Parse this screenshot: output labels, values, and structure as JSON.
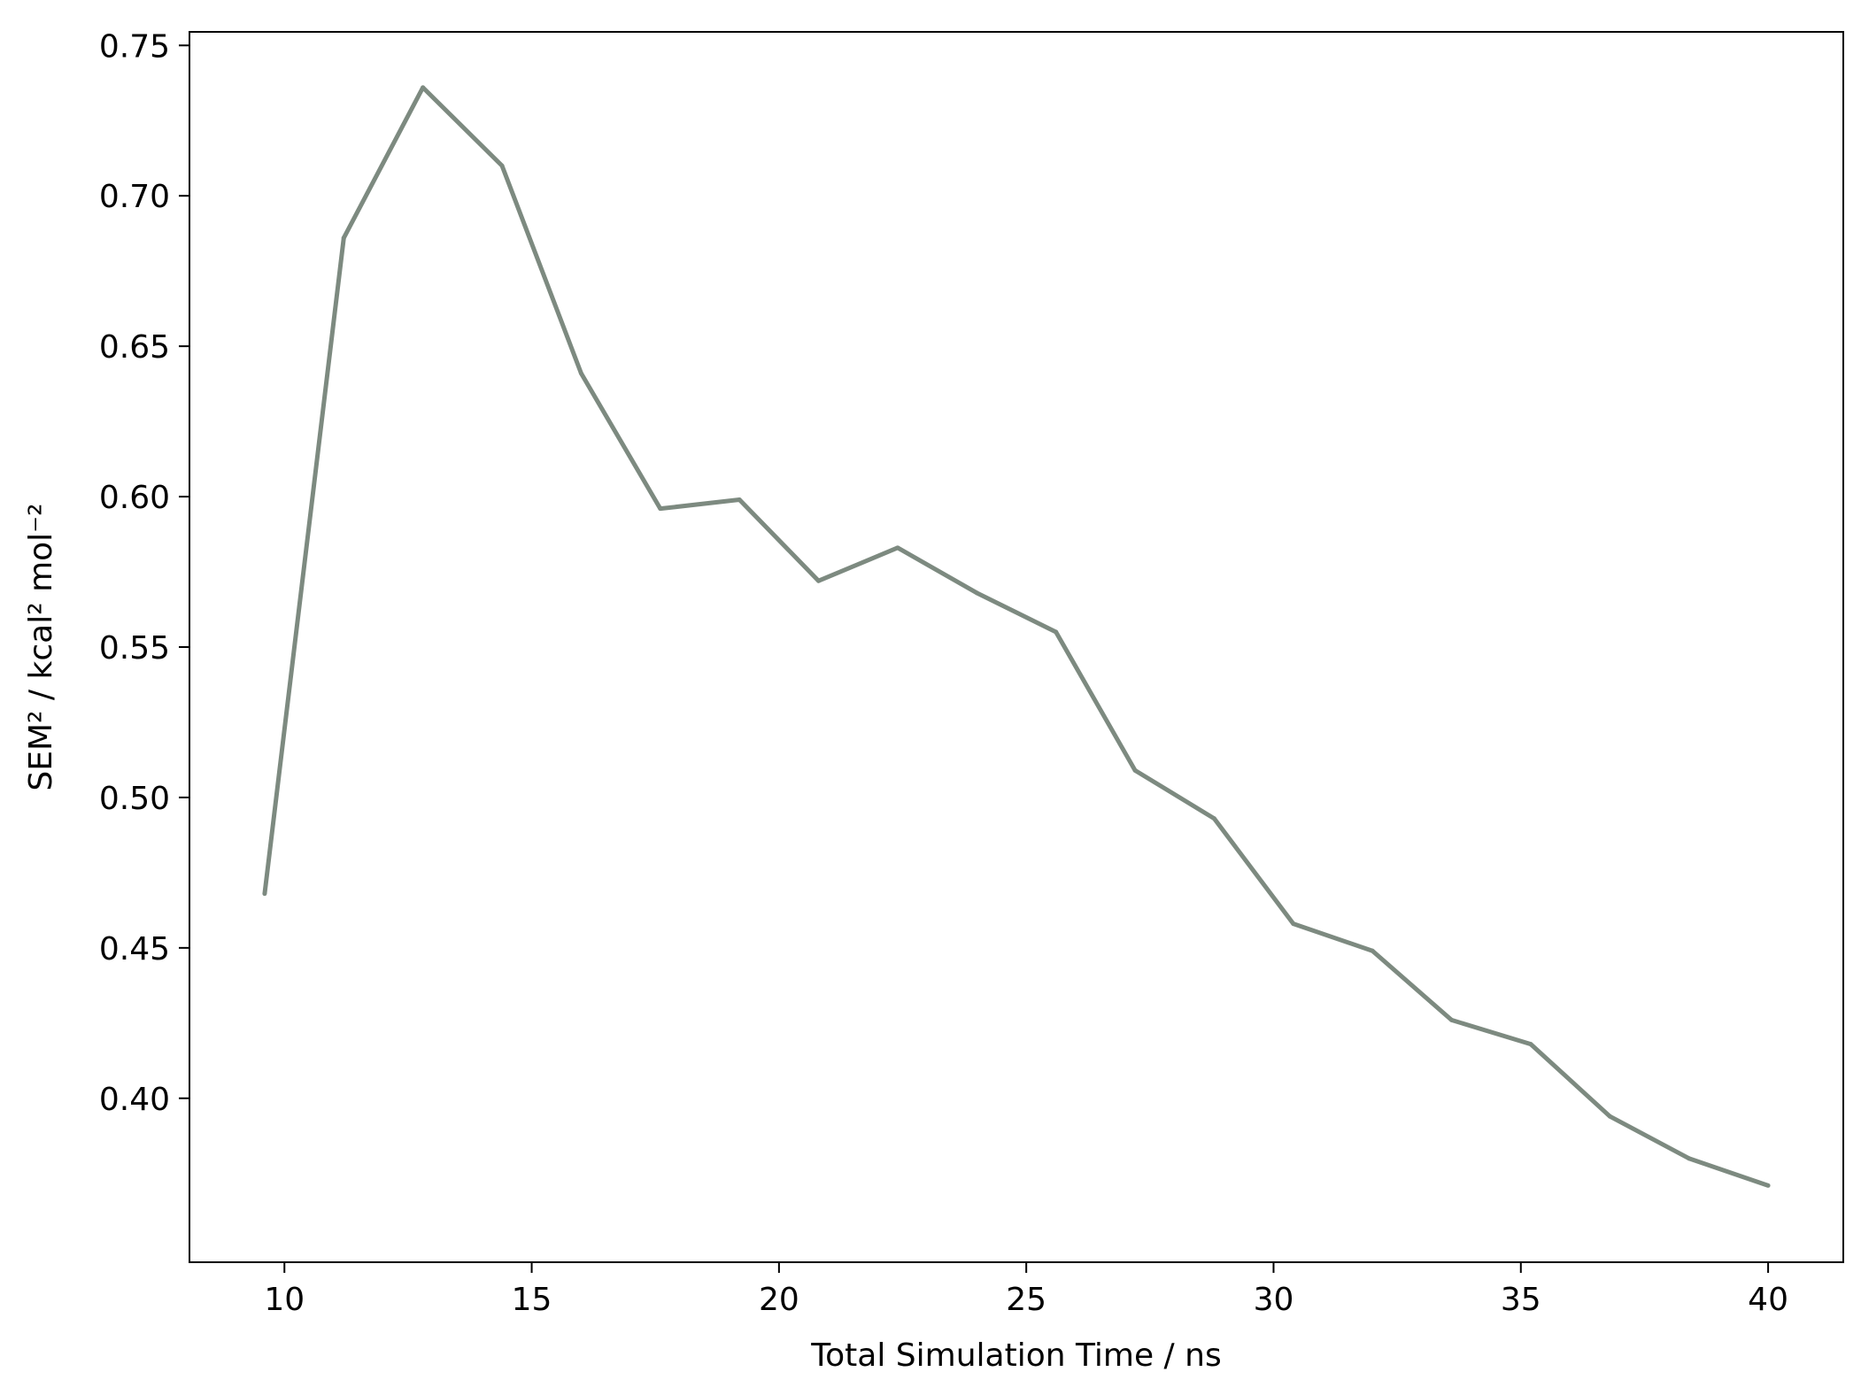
{
  "chart_data": {
    "type": "line",
    "title": "",
    "xlabel": "Total Simulation Time / ns",
    "ylabel": "SEM² / kcal² mol⁻²",
    "xlim": [
      8.08,
      41.52
    ],
    "ylim": [
      0.3455,
      0.7545
    ],
    "x_ticks": [
      10,
      15,
      20,
      25,
      30,
      35,
      40
    ],
    "y_ticks": [
      0.4,
      0.45,
      0.5,
      0.55,
      0.6,
      0.65,
      0.7,
      0.75
    ],
    "grid": false,
    "series": [
      {
        "color": "#7d8a80",
        "x": [
          9.6,
          11.2,
          12.8,
          14.4,
          16.0,
          17.6,
          19.2,
          20.8,
          22.4,
          24.0,
          25.6,
          27.2,
          28.8,
          30.4,
          32.0,
          33.6,
          35.2,
          36.8,
          38.4,
          40.0
        ],
        "y": [
          0.468,
          0.686,
          0.736,
          0.71,
          0.641,
          0.596,
          0.599,
          0.572,
          0.583,
          0.568,
          0.555,
          0.509,
          0.493,
          0.458,
          0.449,
          0.426,
          0.418,
          0.394,
          0.38,
          0.371
        ]
      }
    ]
  }
}
